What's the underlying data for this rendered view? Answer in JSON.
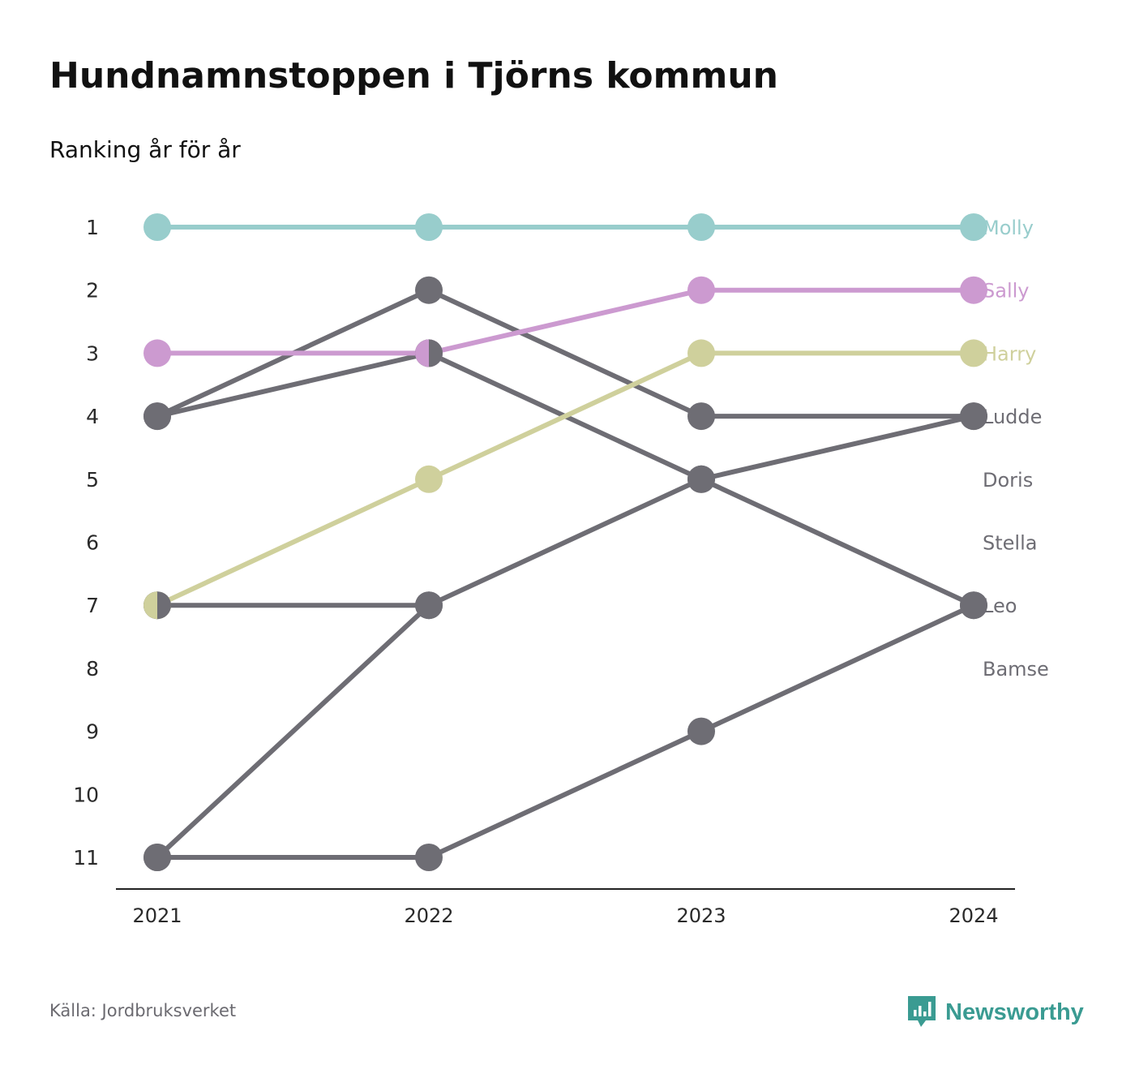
{
  "title": "Hundnamnstoppen i Tjörns kommun",
  "subtitle": "Ranking år för år",
  "source": "Källa: Jordbruksverket",
  "brand": "Newsworthy",
  "colors": {
    "teal": "#98cdcc",
    "purple": "#cc9ad0",
    "olive": "#cfd09c",
    "grey": "#6e6d74",
    "axis": "#222222",
    "brand": "#3a9b92"
  },
  "chart_data": {
    "type": "line",
    "x": [
      "2021",
      "2022",
      "2023",
      "2024"
    ],
    "y_ticks": [
      1,
      2,
      3,
      4,
      5,
      6,
      7,
      8,
      9,
      10,
      11
    ],
    "ylim": [
      1,
      11
    ],
    "y_inverted": true,
    "grid": false,
    "legend": "end-labels-right",
    "series": [
      {
        "name": "Molly",
        "values": [
          1,
          1,
          1,
          1
        ],
        "color": "#98cdcc"
      },
      {
        "name": "Sally",
        "values": [
          3,
          3,
          2,
          2
        ],
        "color": "#cc9ad0"
      },
      {
        "name": "Harry",
        "values": [
          7,
          5,
          3,
          3
        ],
        "color": "#cfd09c"
      },
      {
        "name": "Ludde",
        "values": [
          11,
          7,
          5,
          4
        ],
        "color": "#6e6d74"
      },
      {
        "name": "Doris",
        "values": [
          4,
          2,
          4,
          4
        ],
        "color": "#6e6d74"
      },
      {
        "name": "Stella",
        "values": [
          4,
          3,
          5,
          7
        ],
        "color": "#6e6d74"
      },
      {
        "name": "Leo",
        "values": [
          11,
          11,
          9,
          7
        ],
        "color": "#6e6d74"
      },
      {
        "name": "Bamse",
        "values": [
          7,
          7,
          null,
          null
        ],
        "color": "#6e6d74"
      }
    ]
  }
}
